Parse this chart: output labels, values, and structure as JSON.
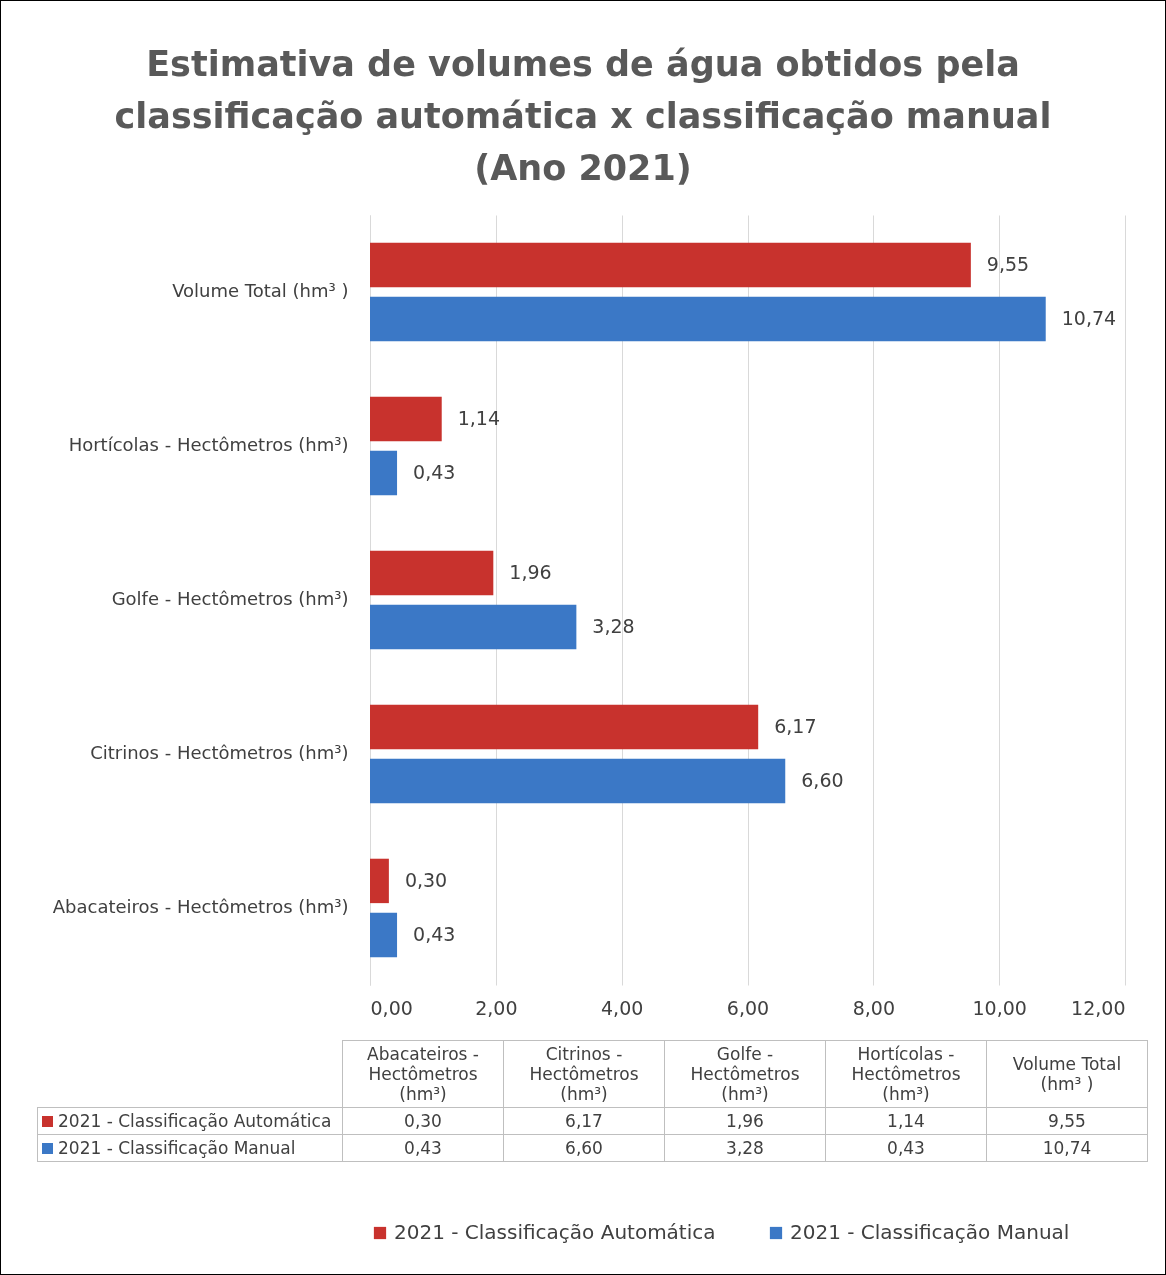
{
  "chart_data": {
    "type": "bar",
    "orientation": "horizontal",
    "title": "Estimativa de volumes de água obtidos pela classificação automática x classificação manual (Ano 2021)",
    "categories": [
      "Volume Total (hm³ )",
      "Hortícolas - Hectômetros (hm³)",
      "Golfe - Hectômetros (hm³)",
      "Citrinos - Hectômetros (hm³)",
      "Abacateiros - Hectômetros (hm³)"
    ],
    "series": [
      {
        "name": "2021 - Classificação Automática",
        "color": "#c8322d",
        "values": [
          9.55,
          1.14,
          1.96,
          6.17,
          0.3
        ],
        "value_labels": [
          "9,55",
          "1,14",
          "1,96",
          "6,17",
          "0,30"
        ]
      },
      {
        "name": "2021 - Classificação Manual",
        "color": "#3b78c6",
        "values": [
          10.74,
          0.43,
          3.28,
          6.6,
          0.43
        ],
        "value_labels": [
          "10,74",
          "0,43",
          "3,28",
          "6,60",
          "0,43"
        ]
      }
    ],
    "xlim": [
      0,
      12
    ],
    "xticks": [
      {
        "value": 0,
        "label": "0,00"
      },
      {
        "value": 2,
        "label": "2,00"
      },
      {
        "value": 4,
        "label": "4,00"
      },
      {
        "value": 6,
        "label": "6,00"
      },
      {
        "value": 8,
        "label": "8,00"
      },
      {
        "value": 10,
        "label": "10,00"
      },
      {
        "value": 12,
        "label": "12,00"
      }
    ],
    "grid": "x",
    "legend": "bottom"
  }
}
